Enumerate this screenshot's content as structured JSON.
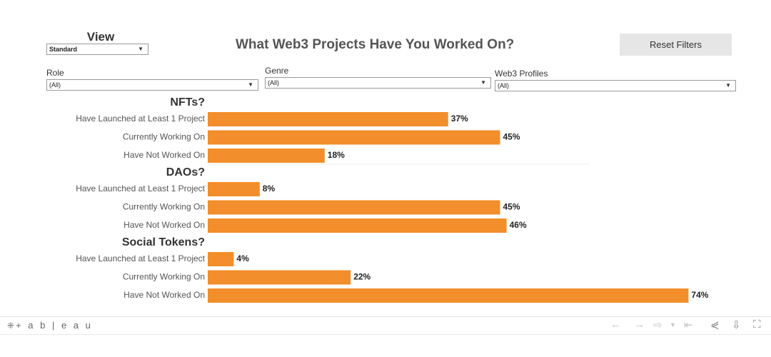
{
  "view": {
    "title": "View",
    "selected": "Standard"
  },
  "dashboard_title": "What Web3 Projects Have You Worked On?",
  "reset_label": "Reset Filters",
  "filters": [
    {
      "label": "Role",
      "value": "(All)"
    },
    {
      "label": "Genre",
      "value": "(All)"
    },
    {
      "label": "Web3 Profiles",
      "value": "(All)"
    }
  ],
  "colors": {
    "bar": "#f28e2b",
    "text": "#333333"
  },
  "chart_data": {
    "type": "bar",
    "orientation": "horizontal",
    "unit": "%",
    "groups": [
      {
        "name": "NFTs?",
        "categories": [
          "Have Launched at Least 1 Project",
          "Currently Working On",
          "Have Not Worked On"
        ],
        "values": [
          37,
          45,
          18
        ],
        "labels": [
          "37%",
          "45%",
          "18%"
        ]
      },
      {
        "name": "DAOs?",
        "categories": [
          "Have Launched at Least 1 Project",
          "Currently Working On",
          "Have Not Worked On"
        ],
        "values": [
          8,
          45,
          46
        ],
        "labels": [
          "8%",
          "45%",
          "46%"
        ]
      },
      {
        "name": "Social Tokens?",
        "categories": [
          "Have Launched at Least 1 Project",
          "Currently Working On",
          "Have Not Worked On"
        ],
        "values": [
          4,
          22,
          74
        ],
        "labels": [
          "4%",
          "22%",
          "74%"
        ]
      }
    ],
    "xlim": [
      0,
      80
    ],
    "grid": false,
    "legend": "none"
  },
  "footer": {
    "logo_text": "+ a b | e a u",
    "logo_icon": "tableau-logo-icon",
    "toolbar_icons": [
      "undo-icon",
      "redo-icon",
      "revert-icon",
      "dropdown-icon",
      "revert-all-icon",
      "share-icon",
      "download-icon",
      "fullscreen-icon"
    ]
  }
}
